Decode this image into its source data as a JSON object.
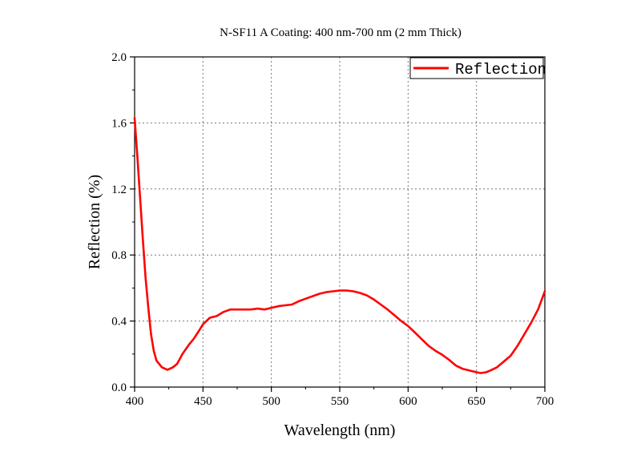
{
  "chart_data": {
    "type": "line",
    "title": "N-SF11 A Coating: 400 nm-700 nm (2 mm Thick)",
    "xlabel": "Wavelength (nm)",
    "ylabel": "Reflection (%)",
    "xlim": [
      400,
      700
    ],
    "ylim": [
      0,
      2.0
    ],
    "xticks": [
      400,
      450,
      500,
      550,
      600,
      650,
      700
    ],
    "xtick_labels": [
      "400",
      "450",
      "500",
      "550",
      "600",
      "650",
      "700"
    ],
    "yticks": [
      0,
      0.4,
      0.8,
      1.2,
      1.6,
      2.0
    ],
    "ytick_labels": [
      "0.0",
      "0.4",
      "0.8",
      "1.2",
      "1.6",
      "2.0"
    ],
    "grid": true,
    "legend": {
      "position": "top-right",
      "entries": [
        "Reflection"
      ]
    },
    "series": [
      {
        "name": "Reflection",
        "color": "#ff0000",
        "x": [
          400,
          402,
          404,
          406,
          408,
          410,
          412,
          414,
          416,
          420,
          424,
          428,
          431,
          435,
          440,
          443,
          447,
          450,
          455,
          460,
          465,
          470,
          475,
          480,
          485,
          490,
          495,
          500,
          505,
          510,
          515,
          520,
          525,
          530,
          535,
          540,
          545,
          550,
          555,
          560,
          565,
          570,
          575,
          580,
          585,
          590,
          595,
          600,
          605,
          610,
          615,
          620,
          625,
          630,
          635,
          640,
          645,
          650,
          653,
          657,
          660,
          665,
          670,
          675,
          680,
          685,
          690,
          695,
          700
        ],
        "y": [
          1.63,
          1.4,
          1.15,
          0.9,
          0.66,
          0.48,
          0.32,
          0.22,
          0.16,
          0.12,
          0.105,
          0.12,
          0.14,
          0.2,
          0.26,
          0.29,
          0.34,
          0.38,
          0.42,
          0.43,
          0.455,
          0.47,
          0.47,
          0.47,
          0.47,
          0.475,
          0.47,
          0.48,
          0.49,
          0.495,
          0.5,
          0.52,
          0.535,
          0.55,
          0.565,
          0.575,
          0.58,
          0.585,
          0.585,
          0.58,
          0.57,
          0.555,
          0.53,
          0.5,
          0.47,
          0.435,
          0.4,
          0.37,
          0.33,
          0.29,
          0.25,
          0.22,
          0.195,
          0.165,
          0.13,
          0.11,
          0.1,
          0.09,
          0.085,
          0.09,
          0.1,
          0.12,
          0.155,
          0.19,
          0.25,
          0.32,
          0.39,
          0.47,
          0.58
        ]
      }
    ]
  }
}
